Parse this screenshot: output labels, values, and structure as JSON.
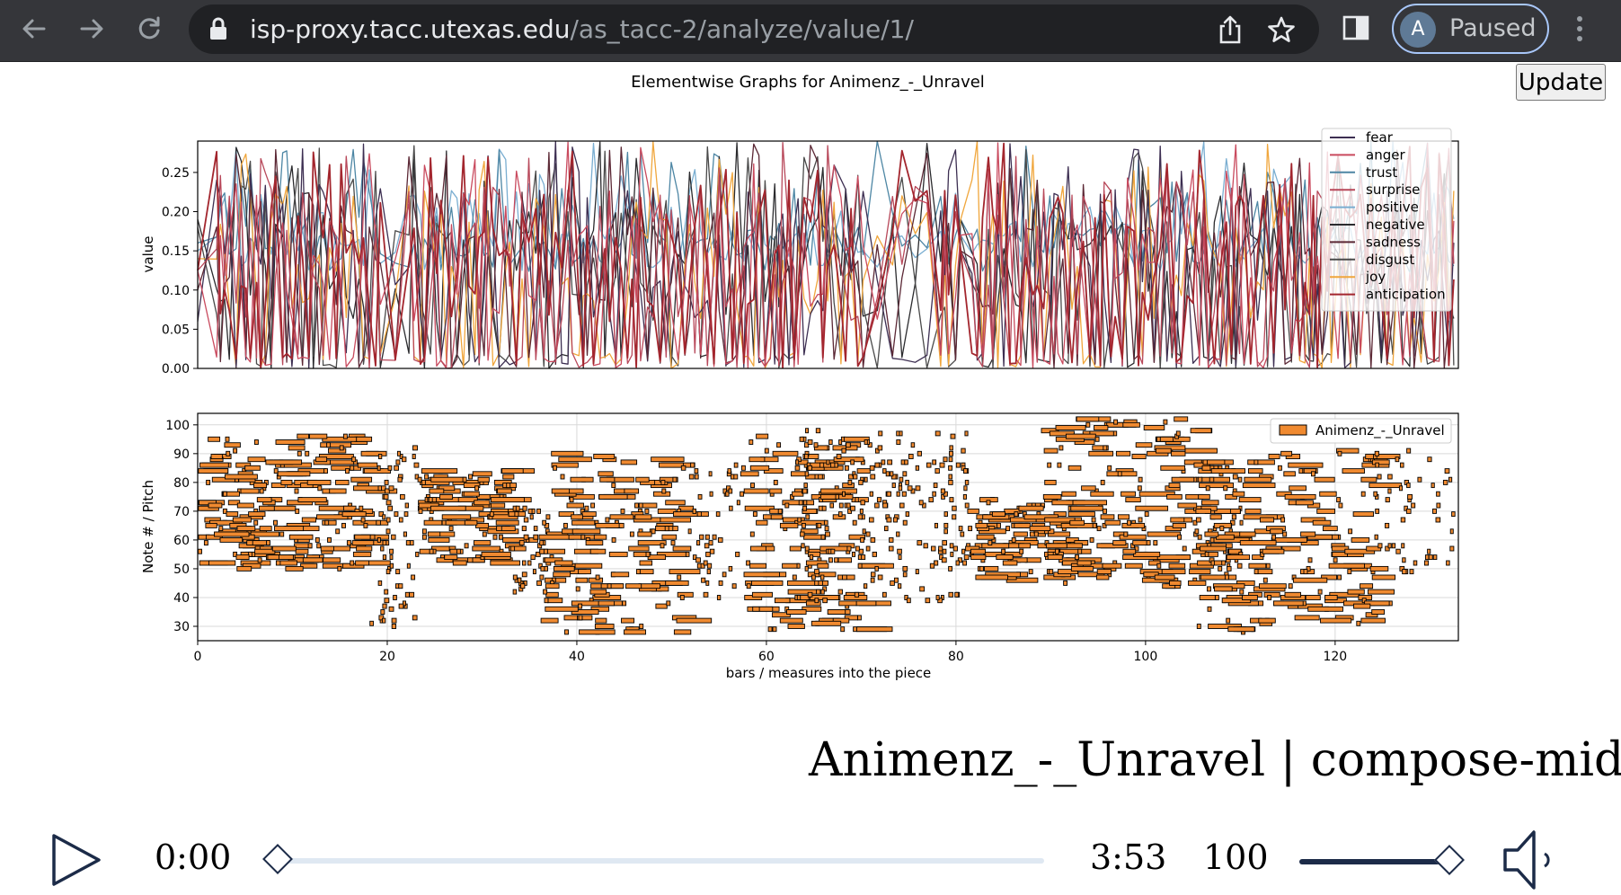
{
  "browser": {
    "url_host": "isp-proxy.tacc.utexas.edu",
    "url_path": "/as_tacc-2/analyze/value/1/",
    "profile_initial": "A",
    "profile_status": "Paused",
    "icons": [
      "back-arrow-icon",
      "forward-arrow-icon",
      "reload-icon",
      "lock-icon",
      "share-icon",
      "star-icon",
      "side-panel-icon",
      "more-menu-icon"
    ]
  },
  "page": {
    "update_label": "Update",
    "song_title": "Animenz_-_Unravel | compose-midi"
  },
  "player": {
    "current_time": "0:00",
    "duration": "3:53",
    "volume": "100",
    "progress_fraction": 0.0,
    "volume_fraction": 1.0,
    "icons": [
      "play-icon",
      "speaker-icon"
    ]
  },
  "chart_data": [
    {
      "type": "line",
      "title": "Elementwise Graphs for Animenz_-_Unravel",
      "xlabel": "",
      "ylabel": "value",
      "xlim": [
        0,
        133
      ],
      "ylim": [
        0,
        0.29
      ],
      "yticks": [
        "0.00",
        "0.05",
        "0.10",
        "0.15",
        "0.20",
        "0.25"
      ],
      "legend_position": "top-right",
      "grid": false,
      "series": [
        {
          "name": "fear",
          "color": "#3d2f52"
        },
        {
          "name": "anger",
          "color": "#c94a5e"
        },
        {
          "name": "trust",
          "color": "#4d86a4"
        },
        {
          "name": "surprise",
          "color": "#b8485a"
        },
        {
          "name": "positive",
          "color": "#7aaed1"
        },
        {
          "name": "negative",
          "color": "#2b2b2e"
        },
        {
          "name": "sadness",
          "color": "#5b2835"
        },
        {
          "name": "disgust",
          "color": "#4a4a4a"
        },
        {
          "name": "joy",
          "color": "#f0a63c"
        },
        {
          "name": "anticipation",
          "color": "#a3262e"
        }
      ],
      "segments": [
        [
          0,
          4,
          "mixed"
        ],
        [
          4,
          19,
          "dense"
        ],
        [
          19,
          22,
          "sparse"
        ],
        [
          22,
          36,
          "dense"
        ],
        [
          36,
          55,
          "dense"
        ],
        [
          55,
          70,
          "dense"
        ],
        [
          70,
          77,
          "sparse"
        ],
        [
          77,
          80,
          "dense"
        ],
        [
          80,
          81,
          "flat"
        ],
        [
          81,
          90,
          "dense"
        ],
        [
          90,
          98,
          "mid"
        ],
        [
          98,
          118,
          "dense"
        ],
        [
          118,
          121,
          "mid"
        ],
        [
          121,
          133,
          "dense"
        ]
      ]
    },
    {
      "type": "scatter",
      "series_label": "Animenz_-_Unravel",
      "xlabel": "bars / measures into the piece",
      "ylabel": "Note # / Pitch",
      "xlim": [
        0,
        133
      ],
      "ylim": [
        25,
        104
      ],
      "xticks": [
        "0",
        "20",
        "40",
        "60",
        "80",
        "100",
        "120"
      ],
      "yticks": [
        "30",
        "40",
        "50",
        "60",
        "70",
        "80",
        "90",
        "100"
      ],
      "legend_position": "top-right",
      "grid": true,
      "note_color": "#f08a30",
      "sections": [
        {
          "x0": 0,
          "x1": 18,
          "p0": 50,
          "p1": 97,
          "mode": "wide",
          "n": 230
        },
        {
          "x0": 18,
          "x1": 23,
          "p0": 30,
          "p1": 92,
          "mode": "dot",
          "n": 70
        },
        {
          "x0": 23,
          "x1": 33,
          "p0": 52,
          "p1": 84,
          "mode": "wide",
          "n": 120
        },
        {
          "x0": 33,
          "x1": 37,
          "p0": 42,
          "p1": 72,
          "mode": "dot",
          "n": 45
        },
        {
          "x0": 36,
          "x1": 51,
          "p0": 27,
          "p1": 90,
          "mode": "wide",
          "n": 180
        },
        {
          "x0": 51,
          "x1": 57,
          "p0": 40,
          "p1": 86,
          "mode": "dot",
          "n": 50
        },
        {
          "x0": 57,
          "x1": 70,
          "p0": 28,
          "p1": 96,
          "mode": "wide",
          "n": 160
        },
        {
          "x0": 63,
          "x1": 81,
          "p0": 38,
          "p1": 98,
          "mode": "dot",
          "n": 230
        },
        {
          "x0": 81,
          "x1": 92,
          "p0": 46,
          "p1": 74,
          "mode": "wide",
          "n": 120
        },
        {
          "x0": 89,
          "x1": 106,
          "p0": 44,
          "p1": 103,
          "mode": "wide",
          "n": 190
        },
        {
          "x0": 105,
          "x1": 110,
          "p0": 46,
          "p1": 82,
          "mode": "dot",
          "n": 40
        },
        {
          "x0": 105,
          "x1": 124,
          "p0": 28,
          "p1": 91,
          "mode": "wide",
          "n": 210
        },
        {
          "x0": 124,
          "x1": 133,
          "p0": 48,
          "p1": 92,
          "mode": "dot",
          "n": 60
        }
      ]
    }
  ]
}
